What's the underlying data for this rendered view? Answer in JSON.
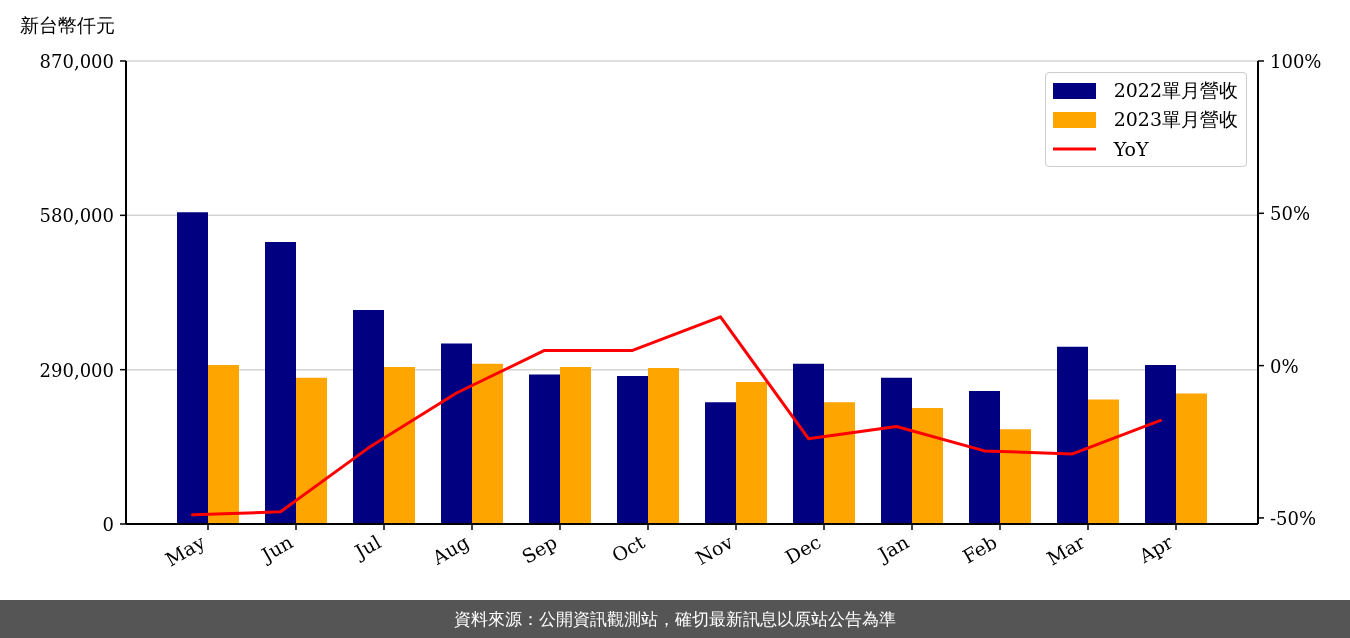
{
  "chart_data": {
    "type": "bar",
    "ylabel": "新台幣仟元",
    "categories": [
      "May",
      "Jun",
      "Jul",
      "Aug",
      "Sep",
      "Oct",
      "Nov",
      "Dec",
      "Jan",
      "Feb",
      "Mar",
      "Apr"
    ],
    "series": [
      {
        "name": "2022單月營收",
        "color": "#000080",
        "values": [
          586000,
          530000,
          402000,
          339000,
          281000,
          278000,
          229000,
          301000,
          275000,
          250000,
          333000,
          299000
        ]
      },
      {
        "name": "2023單月營收",
        "color": "#ffa500",
        "values": [
          299000,
          275000,
          295000,
          301000,
          295000,
          293000,
          267000,
          229000,
          218000,
          178000,
          234000,
          245000
        ]
      },
      {
        "name": "YoY",
        "type": "line",
        "axis": "y2",
        "color": "#ff0000",
        "values": [
          -49,
          -48,
          -27,
          -9,
          5,
          5,
          16,
          -24,
          -20,
          -28,
          -29,
          -18
        ]
      }
    ],
    "ylim": [
      0,
      870000
    ],
    "yticks": [
      0,
      {
        "value": 290000,
        "label": "290,000"
      },
      {
        "value": 580000,
        "label": "580,000"
      },
      {
        "value": 870000,
        "label": "870,000"
      }
    ],
    "y2lim": [
      -52,
      100
    ],
    "y2ticks": [
      {
        "value": -50,
        "label": "-50%"
      },
      {
        "value": 0,
        "label": "0%"
      },
      {
        "value": 50,
        "label": "50%"
      },
      {
        "value": 100,
        "label": "100%"
      }
    ],
    "grid": "y",
    "legend": "top right",
    "annotations": [
      "資料來源：公開資訊觀測站，確切最新訊息以原站公告為準"
    ]
  }
}
